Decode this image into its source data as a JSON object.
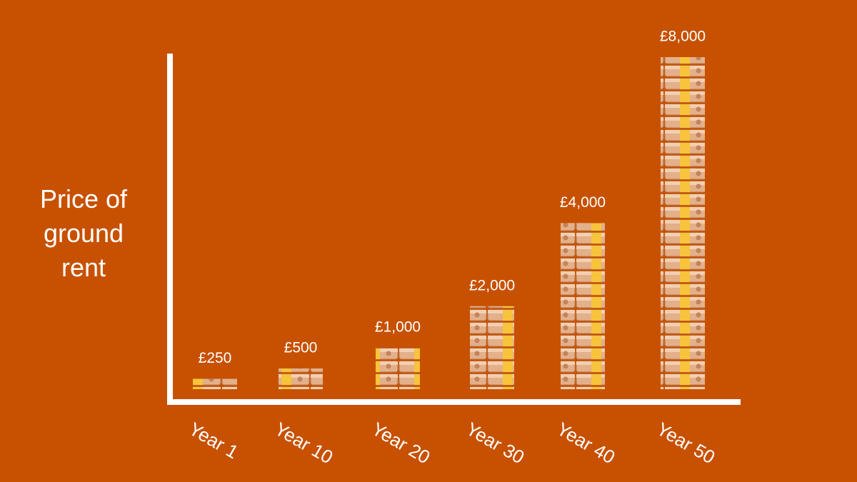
{
  "chart_data": {
    "type": "bar",
    "y_label": "Price of ground rent",
    "categories": [
      "Year 1",
      "Year 10",
      "Year 20",
      "Year 30",
      "Year 40",
      "Year 50"
    ],
    "values": [
      250,
      500,
      1000,
      2000,
      4000,
      8000
    ],
    "value_labels": [
      "£250",
      "£500",
      "£1,000",
      "£2,000",
      "£4,000",
      "£8,000"
    ],
    "color": "#e0ad86"
  }
}
